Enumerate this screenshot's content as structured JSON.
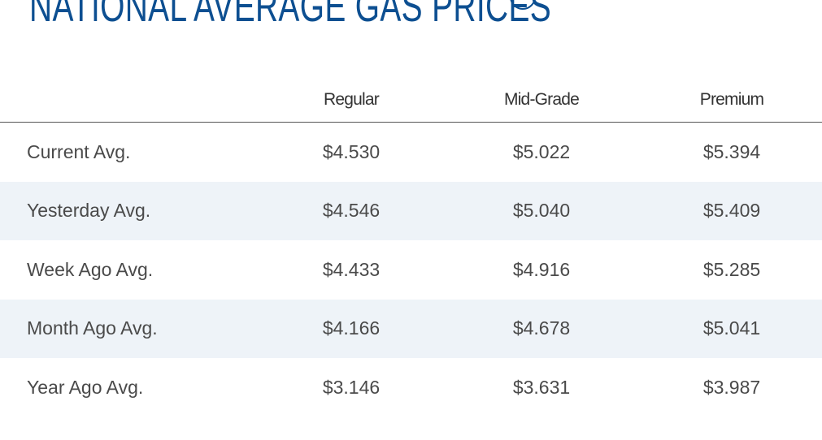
{
  "header": {
    "title": "NATIONAL AVERAGE GAS PRICES"
  },
  "table": {
    "columns": [
      "Regular",
      "Mid-Grade",
      "Premium"
    ],
    "rows": [
      [
        "Current Avg.",
        "$4.530",
        "$5.022",
        "$5.394"
      ],
      [
        "Yesterday Avg.",
        "$4.546",
        "$5.040",
        "$5.409"
      ],
      [
        "Week Ago Avg.",
        "$4.433",
        "$4.916",
        "$5.285"
      ],
      [
        "Month Ago Avg.",
        "$4.166",
        "$4.678",
        "$5.041"
      ],
      [
        "Year Ago Avg.",
        "$3.146",
        "$3.631",
        "$3.987"
      ]
    ]
  }
}
